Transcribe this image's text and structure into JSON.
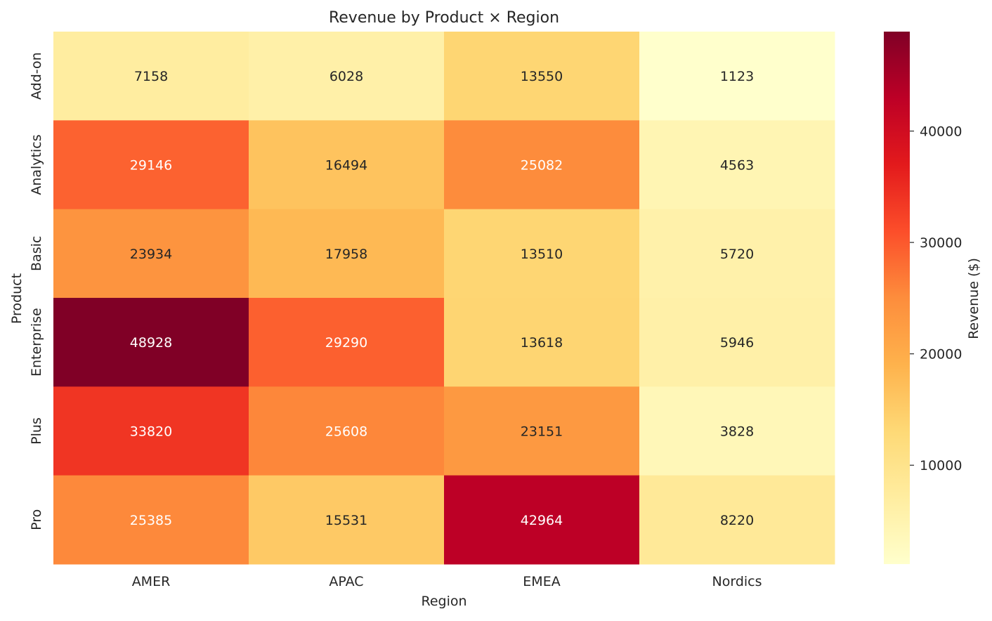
{
  "chart_data": {
    "type": "heatmap",
    "title": "Revenue by Product × Region",
    "xlabel": "Region",
    "ylabel": "Product",
    "x_categories": [
      "AMER",
      "APAC",
      "EMEA",
      "Nordics"
    ],
    "y_categories": [
      "Add-on",
      "Analytics",
      "Basic",
      "Enterprise",
      "Plus",
      "Pro"
    ],
    "values": [
      [
        7158,
        6028,
        13550,
        1123
      ],
      [
        29146,
        16494,
        25082,
        4563
      ],
      [
        23934,
        17958,
        13510,
        5720
      ],
      [
        48928,
        29290,
        13618,
        5946
      ],
      [
        33820,
        25608,
        23151,
        3828
      ],
      [
        25385,
        15531,
        42964,
        8220
      ]
    ],
    "colorbar": {
      "label": "Revenue ($)",
      "range": [
        1123,
        48928
      ],
      "ticks": [
        10000,
        20000,
        30000,
        40000
      ],
      "colormap": "YlOrRd",
      "colors": [
        "#ffffcc",
        "#ffeda0",
        "#fed976",
        "#feb24c",
        "#fd8d3c",
        "#fc4e2a",
        "#e31a1c",
        "#bd0026",
        "#800026"
      ]
    },
    "annotations": "cell values shown",
    "grid": false
  }
}
